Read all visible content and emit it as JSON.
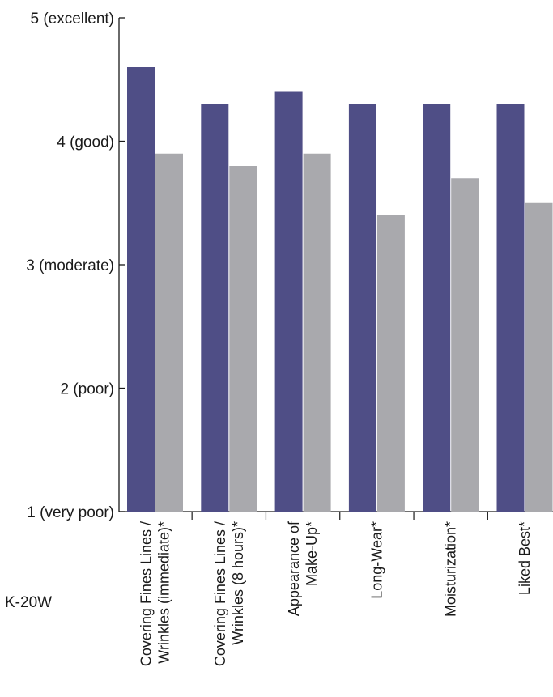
{
  "chart_data": {
    "type": "bar",
    "title": "",
    "xlabel": "",
    "ylabel": "",
    "ylim": [
      1,
      5
    ],
    "y_ticks": [
      {
        "value": 5,
        "label": "5 (excellent)"
      },
      {
        "value": 4,
        "label": "4 (good)"
      },
      {
        "value": 3,
        "label": "3 (moderate)"
      },
      {
        "value": 2,
        "label": "2 (poor)"
      },
      {
        "value": 1,
        "label": "1 (very poor)"
      }
    ],
    "categories": [
      [
        "Covering Fines Lines /",
        "Wrinkles (immediate)*"
      ],
      [
        "Covering Fines Lines /",
        "Wrinkles (8 hours)*"
      ],
      [
        "Appearance of",
        "Make-Up*"
      ],
      [
        "Long-Wear*"
      ],
      [
        "Moisturization*"
      ],
      [
        "Liked Best*"
      ]
    ],
    "series": [
      {
        "name": "",
        "color": "#4f4e86",
        "values": [
          4.6,
          4.3,
          4.4,
          4.3,
          4.3,
          4.3
        ]
      },
      {
        "name": "",
        "color": "#a9a9ad",
        "values": [
          3.9,
          3.8,
          3.9,
          3.4,
          3.7,
          3.5
        ]
      }
    ],
    "grid": false,
    "legend": {
      "placement": "bottom-left",
      "visible_labels": [
        "K-20W"
      ]
    }
  }
}
